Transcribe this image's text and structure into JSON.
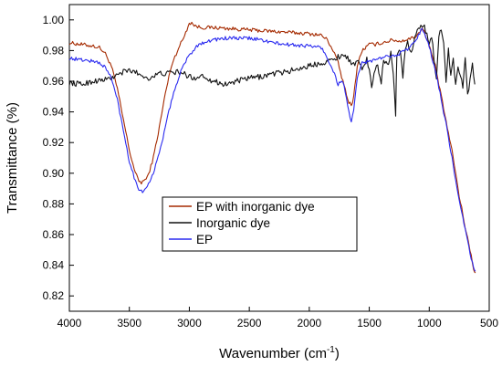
{
  "chart_data": {
    "type": "line",
    "xlabel": "Wavenumber (cm",
    "xlabel_sup": "-1",
    "xlabel_end": ")",
    "ylabel": "Transmittance (%)",
    "xlim": [
      4000,
      500
    ],
    "ylim": [
      0.81,
      1.01
    ],
    "x_reversed": true,
    "x_ticks": [
      4000,
      3500,
      3000,
      2500,
      2000,
      1500,
      1000,
      500
    ],
    "y_ticks": [
      0.82,
      0.84,
      0.86,
      0.88,
      0.9,
      0.92,
      0.94,
      0.96,
      0.98,
      1.0
    ],
    "grid": false,
    "legend": "center",
    "series": [
      {
        "name": "EP with inorganic dye",
        "color": "#a52a00",
        "noise": 0.0012,
        "points": [
          [
            4000,
            0.985
          ],
          [
            3900,
            0.984
          ],
          [
            3800,
            0.983
          ],
          [
            3750,
            0.982
          ],
          [
            3700,
            0.978
          ],
          [
            3650,
            0.97
          ],
          [
            3600,
            0.955
          ],
          [
            3550,
            0.935
          ],
          [
            3500,
            0.915
          ],
          [
            3450,
            0.9
          ],
          [
            3420,
            0.895
          ],
          [
            3400,
            0.894
          ],
          [
            3350,
            0.897
          ],
          [
            3300,
            0.91
          ],
          [
            3250,
            0.93
          ],
          [
            3200,
            0.952
          ],
          [
            3150,
            0.97
          ],
          [
            3100,
            0.98
          ],
          [
            3050,
            0.988
          ],
          [
            3000,
            0.998
          ],
          [
            2980,
            0.998
          ],
          [
            2950,
            0.996
          ],
          [
            2900,
            0.995
          ],
          [
            2800,
            0.995
          ],
          [
            2600,
            0.994
          ],
          [
            2400,
            0.993
          ],
          [
            2200,
            0.992
          ],
          [
            2000,
            0.991
          ],
          [
            1900,
            0.99
          ],
          [
            1850,
            0.987
          ],
          [
            1800,
            0.98
          ],
          [
            1760,
            0.972
          ],
          [
            1720,
            0.96
          ],
          [
            1680,
            0.948
          ],
          [
            1650,
            0.944
          ],
          [
            1630,
            0.95
          ],
          [
            1600,
            0.97
          ],
          [
            1560,
            0.98
          ],
          [
            1500,
            0.984
          ],
          [
            1450,
            0.984
          ],
          [
            1400,
            0.985
          ],
          [
            1350,
            0.986
          ],
          [
            1300,
            0.987
          ],
          [
            1250,
            0.986
          ],
          [
            1200,
            0.987
          ],
          [
            1150,
            0.988
          ],
          [
            1100,
            0.99
          ],
          [
            1060,
            0.995
          ],
          [
            1030,
            0.99
          ],
          [
            1000,
            0.983
          ],
          [
            950,
            0.97
          ],
          [
            900,
            0.95
          ],
          [
            850,
            0.93
          ],
          [
            800,
            0.91
          ],
          [
            750,
            0.885
          ],
          [
            700,
            0.865
          ],
          [
            660,
            0.85
          ],
          [
            630,
            0.838
          ],
          [
            615,
            0.835
          ]
        ]
      },
      {
        "name": "Inorganic dye",
        "color": "#111111",
        "noise": 0.0018,
        "points": [
          [
            4000,
            0.959
          ],
          [
            3900,
            0.958
          ],
          [
            3800,
            0.96
          ],
          [
            3700,
            0.961
          ],
          [
            3650,
            0.962
          ],
          [
            3600,
            0.964
          ],
          [
            3550,
            0.966
          ],
          [
            3500,
            0.967
          ],
          [
            3450,
            0.966
          ],
          [
            3400,
            0.964
          ],
          [
            3350,
            0.962
          ],
          [
            3300,
            0.963
          ],
          [
            3250,
            0.965
          ],
          [
            3200,
            0.965
          ],
          [
            3100,
            0.966
          ],
          [
            3050,
            0.965
          ],
          [
            3000,
            0.963
          ],
          [
            2950,
            0.962
          ],
          [
            2900,
            0.964
          ],
          [
            2800,
            0.96
          ],
          [
            2700,
            0.958
          ],
          [
            2600,
            0.96
          ],
          [
            2500,
            0.962
          ],
          [
            2400,
            0.963
          ],
          [
            2300,
            0.965
          ],
          [
            2200,
            0.966
          ],
          [
            2100,
            0.968
          ],
          [
            2000,
            0.97
          ],
          [
            1900,
            0.972
          ],
          [
            1800,
            0.974
          ],
          [
            1760,
            0.976
          ],
          [
            1720,
            0.977
          ],
          [
            1680,
            0.976
          ],
          [
            1640,
            0.97
          ],
          [
            1600,
            0.973
          ],
          [
            1560,
            0.968
          ],
          [
            1520,
            0.975
          ],
          [
            1480,
            0.957
          ],
          [
            1440,
            0.972
          ],
          [
            1400,
            0.96
          ],
          [
            1380,
            0.975
          ],
          [
            1350,
            0.97
          ],
          [
            1320,
            0.978
          ],
          [
            1300,
            0.965
          ],
          [
            1280,
            0.938
          ],
          [
            1270,
            0.978
          ],
          [
            1240,
            0.98
          ],
          [
            1220,
            0.962
          ],
          [
            1200,
            0.982
          ],
          [
            1180,
            0.985
          ],
          [
            1150,
            0.978
          ],
          [
            1120,
            0.988
          ],
          [
            1100,
            0.992
          ],
          [
            1080,
            0.995
          ],
          [
            1060,
            0.997
          ],
          [
            1040,
            0.996
          ],
          [
            1020,
            0.99
          ],
          [
            1000,
            0.985
          ],
          [
            980,
            0.99
          ],
          [
            960,
            0.975
          ],
          [
            940,
            0.96
          ],
          [
            920,
            0.99
          ],
          [
            900,
            0.995
          ],
          [
            880,
            0.985
          ],
          [
            860,
            0.96
          ],
          [
            840,
            0.98
          ],
          [
            820,
            0.965
          ],
          [
            800,
            0.975
          ],
          [
            780,
            0.958
          ],
          [
            760,
            0.97
          ],
          [
            740,
            0.964
          ],
          [
            720,
            0.955
          ],
          [
            700,
            0.975
          ],
          [
            680,
            0.95
          ],
          [
            660,
            0.962
          ],
          [
            640,
            0.972
          ],
          [
            620,
            0.958
          ]
        ]
      },
      {
        "name": "EP",
        "color": "#2a2af0",
        "noise": 0.0012,
        "points": [
          [
            4000,
            0.975
          ],
          [
            3900,
            0.974
          ],
          [
            3800,
            0.973
          ],
          [
            3750,
            0.972
          ],
          [
            3700,
            0.969
          ],
          [
            3650,
            0.962
          ],
          [
            3600,
            0.948
          ],
          [
            3550,
            0.928
          ],
          [
            3500,
            0.908
          ],
          [
            3450,
            0.895
          ],
          [
            3420,
            0.89
          ],
          [
            3400,
            0.888
          ],
          [
            3370,
            0.889
          ],
          [
            3350,
            0.892
          ],
          [
            3300,
            0.9
          ],
          [
            3250,
            0.913
          ],
          [
            3200,
            0.93
          ],
          [
            3150,
            0.947
          ],
          [
            3100,
            0.96
          ],
          [
            3050,
            0.97
          ],
          [
            3000,
            0.977
          ],
          [
            2950,
            0.982
          ],
          [
            2900,
            0.985
          ],
          [
            2800,
            0.987
          ],
          [
            2700,
            0.988
          ],
          [
            2600,
            0.988
          ],
          [
            2500,
            0.988
          ],
          [
            2400,
            0.987
          ],
          [
            2300,
            0.985
          ],
          [
            2200,
            0.984
          ],
          [
            2000,
            0.983
          ],
          [
            1900,
            0.982
          ],
          [
            1850,
            0.975
          ],
          [
            1800,
            0.967
          ],
          [
            1760,
            0.958
          ],
          [
            1720,
            0.96
          ],
          [
            1680,
            0.945
          ],
          [
            1650,
            0.933
          ],
          [
            1630,
            0.94
          ],
          [
            1600,
            0.962
          ],
          [
            1560,
            0.972
          ],
          [
            1500,
            0.973
          ],
          [
            1450,
            0.974
          ],
          [
            1400,
            0.975
          ],
          [
            1350,
            0.976
          ],
          [
            1300,
            0.977
          ],
          [
            1250,
            0.978
          ],
          [
            1200,
            0.98
          ],
          [
            1150,
            0.983
          ],
          [
            1100,
            0.988
          ],
          [
            1060,
            0.995
          ],
          [
            1030,
            0.99
          ],
          [
            1000,
            0.982
          ],
          [
            950,
            0.968
          ],
          [
            900,
            0.948
          ],
          [
            850,
            0.928
          ],
          [
            800,
            0.905
          ],
          [
            750,
            0.882
          ],
          [
            700,
            0.863
          ],
          [
            660,
            0.848
          ],
          [
            630,
            0.838
          ],
          [
            615,
            0.836
          ]
        ]
      }
    ]
  }
}
